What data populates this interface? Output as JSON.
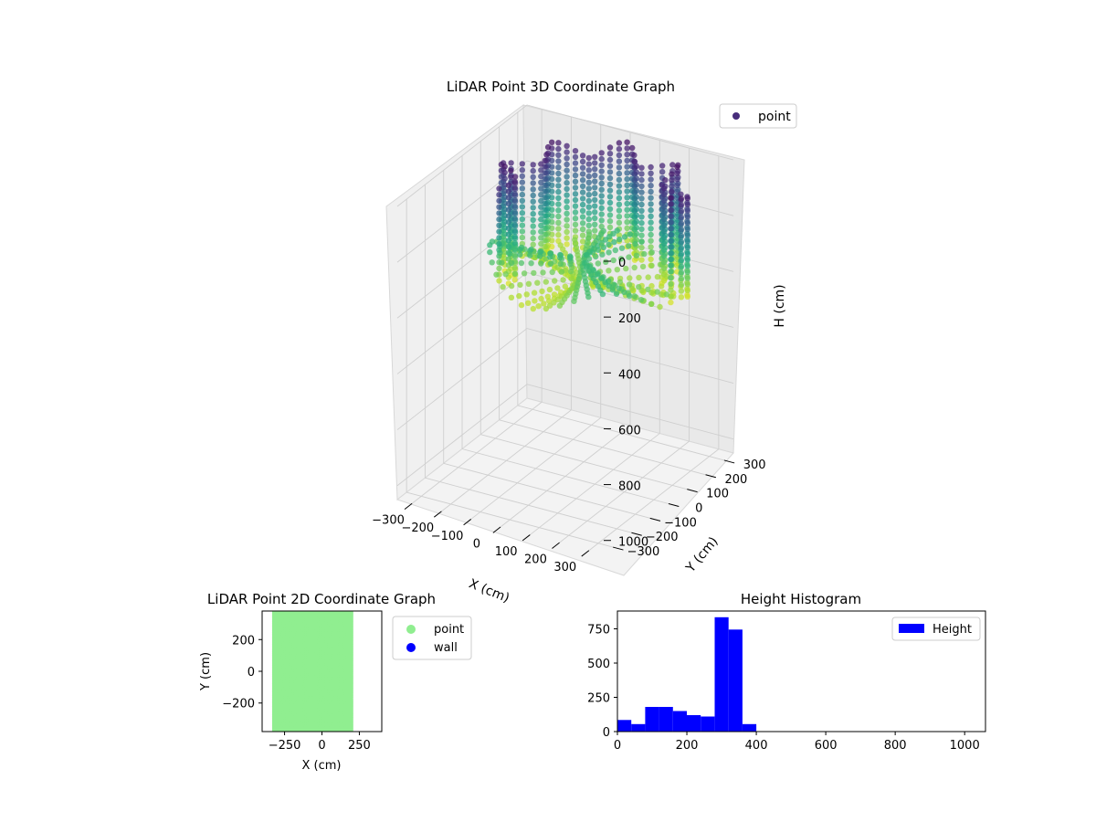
{
  "chart_data": [
    {
      "type": "scatter",
      "projection": "3d",
      "title": "LiDAR Point 3D Coordinate Graph",
      "xlabel": "X (cm)",
      "ylabel": "Y (cm)",
      "zlabel": "H (cm)",
      "x_ticks": [
        "−300",
        "−200",
        "−100",
        "0",
        "100",
        "200",
        "300"
      ],
      "y_ticks": [
        "−300",
        "−200",
        "−100",
        "0",
        "100",
        "200",
        "300"
      ],
      "z_ticks": [
        "0",
        "200",
        "400",
        "600",
        "800",
        "1000"
      ],
      "xlim": [
        -350,
        350
      ],
      "ylim": [
        -350,
        350
      ],
      "zlim": [
        0,
        1050
      ],
      "z_inverted": true,
      "colormap": "viridis",
      "legend": {
        "position": "top-right",
        "entries": [
          {
            "label": "point",
            "color": "#472d7b"
          }
        ]
      },
      "grid": true,
      "series": [
        {
          "name": "point",
          "description_values": "dense point cloud forming a room shell, heights ~0–400 cm",
          "color_scale": "viridis by height"
        }
      ]
    },
    {
      "type": "scatter",
      "title": "LiDAR Point 2D Coordinate Graph",
      "xlabel": "X (cm)",
      "ylabel": "Y (cm)",
      "x_ticks": [
        "−250",
        "0",
        "250"
      ],
      "y_ticks": [
        "200",
        "0",
        "−200"
      ],
      "xlim": [
        -400,
        400
      ],
      "ylim": [
        -380,
        380
      ],
      "legend": {
        "position": "outside-right",
        "entries": [
          {
            "label": "point",
            "color": "#90ee90"
          },
          {
            "label": "wall",
            "color": "#0000ff"
          }
        ]
      },
      "series": [
        {
          "name": "point",
          "color": "#90ee90",
          "region_x": [
            -300,
            180
          ],
          "region_y": [
            -380,
            380
          ]
        },
        {
          "name": "wall",
          "color": "#0000ff",
          "points": []
        }
      ]
    },
    {
      "type": "bar",
      "title": "Height Histogram",
      "xlabel": "",
      "ylabel": "",
      "x_ticks": [
        "0",
        "200",
        "400",
        "600",
        "800",
        "1000"
      ],
      "y_ticks": [
        "0",
        "250",
        "500",
        "750"
      ],
      "xlim": [
        0,
        1060
      ],
      "ylim": [
        0,
        880
      ],
      "legend": {
        "position": "top-right",
        "entries": [
          {
            "label": "Height",
            "color": "#0000ff"
          }
        ]
      },
      "series": [
        {
          "name": "Height",
          "color": "#0000ff",
          "bin_edges": [
            0,
            40,
            80,
            120,
            160,
            200,
            240,
            280,
            320,
            360,
            400
          ],
          "values": [
            85,
            55,
            180,
            180,
            150,
            120,
            110,
            835,
            745,
            55
          ]
        }
      ]
    }
  ]
}
